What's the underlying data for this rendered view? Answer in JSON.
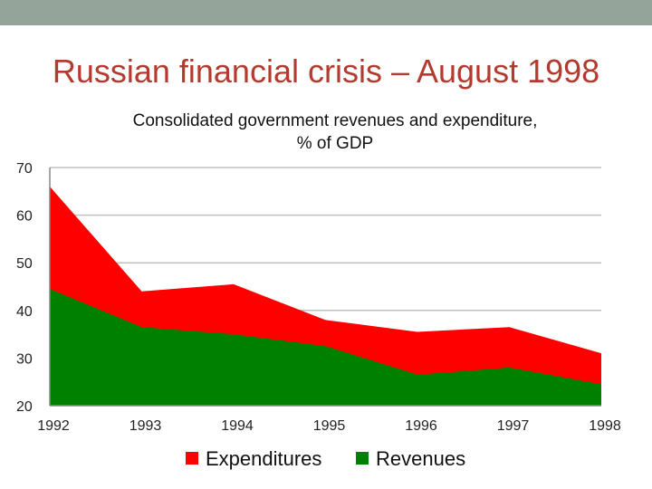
{
  "slide": {
    "title": "Russian financial crisis – August 1998"
  },
  "colors": {
    "band": "#94a49a",
    "title": "#b23a2e",
    "expenditures": "#ff0000",
    "revenues": "#008000",
    "grid": "#c0c0c0"
  },
  "chart_data": {
    "type": "area",
    "title_lines": [
      "Consolidated government revenues and expenditure,",
      "% of GDP"
    ],
    "categories": [
      "1992",
      "1993",
      "1994",
      "1995",
      "1996",
      "1997",
      "1998"
    ],
    "series": [
      {
        "name": "Expenditures",
        "color": "#ff0000",
        "values": [
          66,
          44,
          45.5,
          38,
          35.5,
          36.5,
          31
        ]
      },
      {
        "name": "Revenues",
        "color": "#008000",
        "values": [
          44.5,
          36.5,
          35,
          32.5,
          26.5,
          28,
          24.5
        ]
      }
    ],
    "ylim": [
      20,
      70
    ],
    "yticks": [
      20,
      30,
      40,
      50,
      60,
      70
    ],
    "grid": true,
    "legend_position": "bottom"
  }
}
